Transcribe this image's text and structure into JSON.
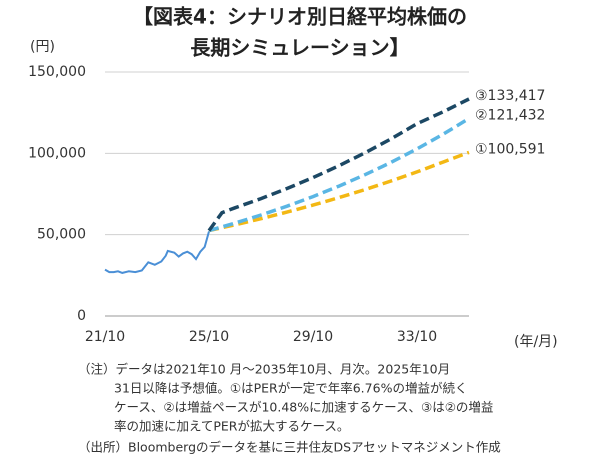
{
  "chart_data": {
    "type": "line",
    "title": [
      "【図表4：シナリオ別日経平均株価の",
      "長期シミュレーション】"
    ],
    "y_unit": "(円)",
    "x_unit": "(年/月)",
    "xlim": [
      "21/10",
      "35/10"
    ],
    "xticks": [
      "21/10",
      "25/10",
      "29/10",
      "33/10"
    ],
    "ylim": [
      0,
      150000
    ],
    "yticks": [
      0,
      {
        "value": 50000,
        "label": "50,000"
      },
      {
        "value": 100000,
        "label": "100,000"
      },
      {
        "value": 150000,
        "label": "150,000"
      }
    ],
    "grid": true,
    "series": [
      {
        "color": "#4a8fd6",
        "dash": false,
        "x": [
          "21/10",
          "21/12",
          "22/02",
          "22/04",
          "22/06",
          "22/09",
          "22/12",
          "23/03",
          "23/06",
          "23/09",
          "23/12",
          "24/02",
          "24/03",
          "24/06",
          "24/08",
          "24/10",
          "24/12",
          "25/02",
          "25/04",
          "25/06",
          "25/08",
          "25/10"
        ],
        "values": [
          28500,
          27000,
          27000,
          27500,
          26500,
          27500,
          27000,
          28000,
          33000,
          31500,
          33500,
          37000,
          40000,
          39000,
          36500,
          38500,
          39500,
          38000,
          35000,
          39500,
          42500,
          52000
        ]
      },
      {
        "color": "#f3b814",
        "dash": true,
        "x": [
          "25/10",
          "26/10",
          "27/10",
          "28/10",
          "29/10",
          "30/10",
          "31/10",
          "32/10",
          "33/10",
          "34/10",
          "35/10"
        ],
        "values": [
          52500,
          56050,
          59840,
          63880,
          68200,
          72810,
          77730,
          82990,
          88600,
          94590,
          100591
        ],
        "value_labels": [
          null,
          null,
          null,
          null,
          null,
          null,
          null,
          null,
          null,
          null,
          "①100,591"
        ]
      },
      {
        "color": "#5ab6e4",
        "dash": true,
        "x": [
          "25/10",
          "26/10",
          "27/10",
          "28/10",
          "29/10",
          "30/10",
          "31/10",
          "32/10",
          "33/10",
          "34/10",
          "35/10"
        ],
        "values": [
          52500,
          57090,
          62090,
          67520,
          73430,
          79860,
          86850,
          94450,
          102720,
          111710,
          121432
        ],
        "value_labels": [
          null,
          null,
          null,
          null,
          null,
          null,
          null,
          null,
          null,
          null,
          "②121,432"
        ]
      },
      {
        "color": "#1c4864",
        "dash": true,
        "x": [
          "25/10",
          "26/04",
          "26/10",
          "27/10",
          "28/10",
          "29/10",
          "30/10",
          "31/10",
          "32/10",
          "33/10",
          "34/10",
          "35/10"
        ],
        "values": [
          52500,
          63500,
          66500,
          72200,
          78400,
          85100,
          92400,
          100300,
          108900,
          118200,
          125500,
          133417
        ],
        "value_labels": [
          null,
          null,
          null,
          null,
          null,
          null,
          null,
          null,
          null,
          null,
          null,
          "③133,417"
        ]
      }
    ],
    "notes": [
      "（注）データは2021年10 月～2035年10月、月次。2025年10月",
      "31日以降は予想値。①はPERが一定で年率6.76%の増益が続く",
      "ケース、②は増益ペースが10.48%に加速するケース、③は②の増益",
      "率の加速に加えてPERが拡大するケース。",
      "（出所）Bloombergのデータを基に三井住友DSアセットマネジメント作成"
    ]
  }
}
